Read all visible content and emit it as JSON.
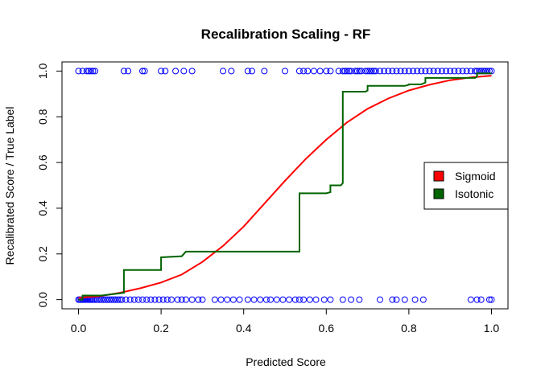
{
  "chart_data": {
    "type": "scatter",
    "title": "Recalibration Scaling - RF",
    "xlabel": "Predicted Score",
    "ylabel": "Recalibrated Score / True Label",
    "xlim": [
      -0.04,
      1.04
    ],
    "ylim": [
      -0.04,
      1.04
    ],
    "xticks": [
      "0.0",
      "0.2",
      "0.4",
      "0.6",
      "0.8",
      "1.0"
    ],
    "yticks": [
      "0.0",
      "0.2",
      "0.4",
      "0.6",
      "0.8",
      "1.0"
    ],
    "grid": false,
    "legend_position": "right",
    "points": {
      "color": "#0000ff",
      "label_1_x": [
        0.0,
        0.01,
        0.02,
        0.025,
        0.03,
        0.035,
        0.04,
        0.11,
        0.12,
        0.155,
        0.16,
        0.2,
        0.21,
        0.235,
        0.255,
        0.275,
        0.35,
        0.37,
        0.41,
        0.42,
        0.45,
        0.5,
        0.535,
        0.545,
        0.555,
        0.57,
        0.585,
        0.6,
        0.61,
        0.63,
        0.64,
        0.645,
        0.65,
        0.655,
        0.66,
        0.67,
        0.675,
        0.68,
        0.685,
        0.695,
        0.7,
        0.705,
        0.71,
        0.715,
        0.72,
        0.73,
        0.74,
        0.75,
        0.76,
        0.77,
        0.78,
        0.79,
        0.8,
        0.81,
        0.82,
        0.83,
        0.84,
        0.85,
        0.86,
        0.87,
        0.88,
        0.89,
        0.9,
        0.91,
        0.92,
        0.93,
        0.94,
        0.95,
        0.96,
        0.965,
        0.97,
        0.975,
        0.98,
        0.985,
        0.99,
        0.995,
        1.0
      ],
      "label_0_x": [
        0.0,
        0.003,
        0.006,
        0.009,
        0.012,
        0.015,
        0.018,
        0.021,
        0.024,
        0.027,
        0.03,
        0.033,
        0.036,
        0.04,
        0.045,
        0.05,
        0.055,
        0.06,
        0.065,
        0.07,
        0.075,
        0.08,
        0.085,
        0.09,
        0.095,
        0.1,
        0.105,
        0.115,
        0.125,
        0.135,
        0.145,
        0.155,
        0.165,
        0.175,
        0.185,
        0.195,
        0.205,
        0.215,
        0.225,
        0.24,
        0.25,
        0.26,
        0.275,
        0.29,
        0.3,
        0.33,
        0.345,
        0.36,
        0.375,
        0.39,
        0.41,
        0.425,
        0.44,
        0.455,
        0.465,
        0.48,
        0.495,
        0.51,
        0.525,
        0.535,
        0.545,
        0.56,
        0.575,
        0.595,
        0.61,
        0.64,
        0.66,
        0.68,
        0.73,
        0.76,
        0.77,
        0.79,
        0.815,
        0.835,
        0.95,
        0.965,
        0.975,
        0.995,
        1.0
      ]
    },
    "series": [
      {
        "name": "Sigmoid",
        "color": "#ff0000",
        "x": [
          0.0,
          0.05,
          0.1,
          0.15,
          0.2,
          0.25,
          0.3,
          0.35,
          0.4,
          0.45,
          0.5,
          0.55,
          0.6,
          0.65,
          0.7,
          0.75,
          0.8,
          0.85,
          0.9,
          0.95,
          1.0
        ],
        "y": [
          0.008,
          0.015,
          0.03,
          0.05,
          0.075,
          0.11,
          0.165,
          0.235,
          0.32,
          0.42,
          0.52,
          0.615,
          0.7,
          0.775,
          0.835,
          0.88,
          0.915,
          0.94,
          0.96,
          0.972,
          0.98
        ]
      },
      {
        "name": "Isotonic",
        "color": "#006400",
        "x": [
          0.0,
          0.01,
          0.01,
          0.055,
          0.11,
          0.11,
          0.2,
          0.2,
          0.25,
          0.26,
          0.26,
          0.535,
          0.535,
          0.6,
          0.61,
          0.61,
          0.635,
          0.64,
          0.64,
          0.695,
          0.7,
          0.7,
          0.79,
          0.8,
          0.8,
          0.83,
          0.84,
          0.84,
          0.96,
          0.965,
          0.965,
          1.0
        ],
        "y": [
          0.0,
          0.0,
          0.018,
          0.018,
          0.03,
          0.13,
          0.13,
          0.185,
          0.19,
          0.21,
          0.21,
          0.21,
          0.465,
          0.465,
          0.47,
          0.5,
          0.5,
          0.51,
          0.91,
          0.91,
          0.915,
          0.935,
          0.935,
          0.94,
          0.942,
          0.942,
          0.95,
          0.97,
          0.97,
          0.975,
          0.99,
          0.99
        ]
      }
    ],
    "legend": [
      {
        "label": "Sigmoid",
        "color": "#ff0000"
      },
      {
        "label": "Isotonic",
        "color": "#006400"
      }
    ]
  }
}
